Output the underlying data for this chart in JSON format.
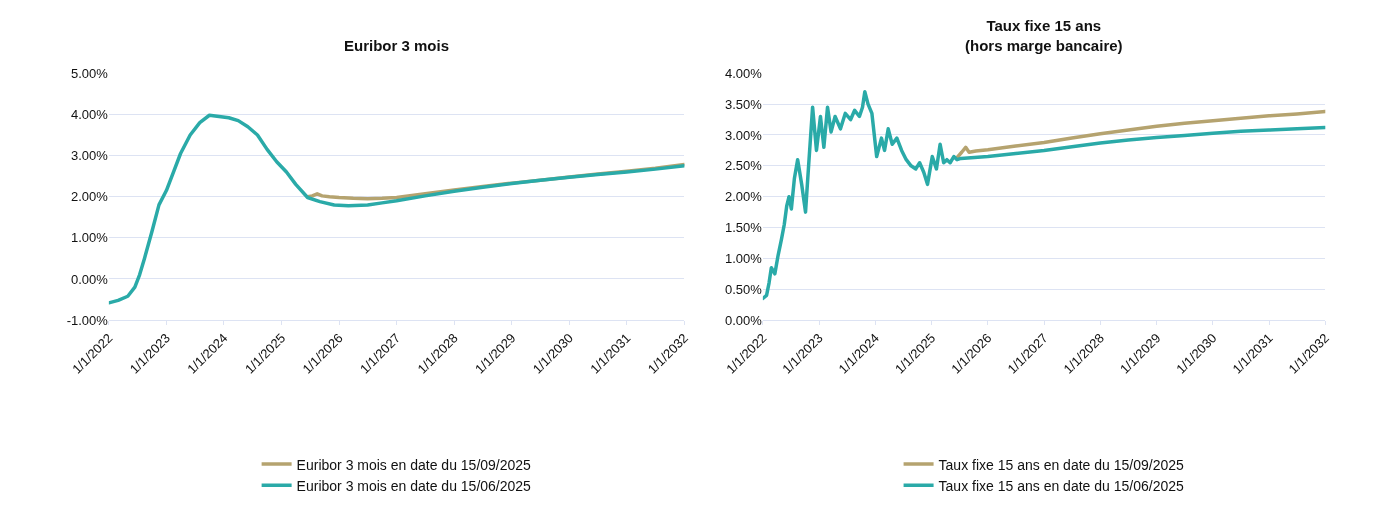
{
  "chart_data": [
    {
      "type": "line",
      "title": "Euribor 3 mois",
      "xlim": [
        "2022-01-01",
        "2032-01-01"
      ],
      "xticks": [
        {
          "value": "2022-01-01",
          "label": "1/1/2022"
        },
        {
          "value": "2023-01-01",
          "label": "1/1/2023"
        },
        {
          "value": "2024-01-01",
          "label": "1/1/2024"
        },
        {
          "value": "2025-01-01",
          "label": "1/1/2025"
        },
        {
          "value": "2026-01-01",
          "label": "1/1/2026"
        },
        {
          "value": "2027-01-01",
          "label": "1/1/2027"
        },
        {
          "value": "2028-01-01",
          "label": "1/1/2028"
        },
        {
          "value": "2029-01-01",
          "label": "1/1/2029"
        },
        {
          "value": "2030-01-01",
          "label": "1/1/2030"
        },
        {
          "value": "2031-01-01",
          "label": "1/1/2031"
        },
        {
          "value": "2032-01-01",
          "label": "1/1/2032"
        }
      ],
      "ylim": [
        -1,
        5
      ],
      "yticks": [
        {
          "value": -1,
          "label": "-1.00%"
        },
        {
          "value": 0,
          "label": "0.00%"
        },
        {
          "value": 1,
          "label": "1.00%"
        },
        {
          "value": 2,
          "label": "2.00%"
        },
        {
          "value": 3,
          "label": "3.00%"
        },
        {
          "value": 4,
          "label": "4.00%"
        },
        {
          "value": 5,
          "label": "5.00%"
        }
      ],
      "grid": "y",
      "legend": "bottom",
      "line_style": "solid",
      "marker": "none",
      "series": [
        {
          "name": "Euribor 3 mois en date du 15/09/2025",
          "color": "#b5a36f",
          "x": [
            "2025-06-15",
            "2025-07-15",
            "2025-08-15",
            "2025-09-15",
            "2025-11-01",
            "2026-01-01",
            "2026-04-01",
            "2026-07-01",
            "2026-10-01",
            "2027-01-01",
            "2027-07-01",
            "2028-01-01",
            "2028-07-01",
            "2029-01-01",
            "2029-07-01",
            "2030-01-01",
            "2030-07-01",
            "2031-01-01",
            "2031-07-01",
            "2032-01-01"
          ],
          "values": [
            2.0,
            2.02,
            2.07,
            2.02,
            2.0,
            1.98,
            1.96,
            1.95,
            1.96,
            1.98,
            2.07,
            2.16,
            2.25,
            2.33,
            2.4,
            2.48,
            2.55,
            2.62,
            2.69,
            2.78
          ]
        },
        {
          "name": "Euribor 3 mois en date du 15/06/2025",
          "color": "#2aaaa8",
          "x": [
            "2022-01-01",
            "2022-03-01",
            "2022-05-01",
            "2022-06-15",
            "2022-07-15",
            "2022-08-15",
            "2022-10-01",
            "2022-11-15",
            "2023-01-01",
            "2023-02-15",
            "2023-04-01",
            "2023-06-01",
            "2023-08-01",
            "2023-10-01",
            "2023-12-01",
            "2024-02-01",
            "2024-04-01",
            "2024-06-01",
            "2024-08-01",
            "2024-10-01",
            "2024-12-01",
            "2025-02-01",
            "2025-04-01",
            "2025-06-15",
            "2025-09-01",
            "2025-12-01",
            "2026-03-01",
            "2026-07-01",
            "2026-10-01",
            "2027-01-01",
            "2027-07-01",
            "2028-01-01",
            "2028-07-01",
            "2029-01-01",
            "2029-07-01",
            "2030-01-01",
            "2030-07-01",
            "2031-01-01",
            "2031-07-01",
            "2032-01-01"
          ],
          "values": [
            -0.58,
            -0.52,
            -0.42,
            -0.2,
            0.1,
            0.5,
            1.15,
            1.8,
            2.15,
            2.6,
            3.05,
            3.5,
            3.8,
            3.98,
            3.95,
            3.92,
            3.85,
            3.7,
            3.5,
            3.15,
            2.85,
            2.6,
            2.3,
            1.98,
            1.88,
            1.8,
            1.78,
            1.8,
            1.85,
            1.9,
            2.02,
            2.13,
            2.23,
            2.32,
            2.4,
            2.47,
            2.54,
            2.6,
            2.67,
            2.75
          ]
        }
      ]
    },
    {
      "type": "line",
      "title": "Taux fixe 15 ans\n(hors marge bancaire)",
      "xlim": [
        "2022-01-01",
        "2032-01-01"
      ],
      "xticks": [
        {
          "value": "2022-01-01",
          "label": "1/1/2022"
        },
        {
          "value": "2023-01-01",
          "label": "1/1/2023"
        },
        {
          "value": "2024-01-01",
          "label": "1/1/2024"
        },
        {
          "value": "2025-01-01",
          "label": "1/1/2025"
        },
        {
          "value": "2026-01-01",
          "label": "1/1/2026"
        },
        {
          "value": "2027-01-01",
          "label": "1/1/2027"
        },
        {
          "value": "2028-01-01",
          "label": "1/1/2028"
        },
        {
          "value": "2029-01-01",
          "label": "1/1/2029"
        },
        {
          "value": "2030-01-01",
          "label": "1/1/2030"
        },
        {
          "value": "2031-01-01",
          "label": "1/1/2031"
        },
        {
          "value": "2032-01-01",
          "label": "1/1/2032"
        }
      ],
      "ylim": [
        0,
        4
      ],
      "yticks": [
        {
          "value": 0,
          "label": "0.00%"
        },
        {
          "value": 0.5,
          "label": "0.50%"
        },
        {
          "value": 1,
          "label": "1.00%"
        },
        {
          "value": 1.5,
          "label": "1.50%"
        },
        {
          "value": 2,
          "label": "2.00%"
        },
        {
          "value": 2.5,
          "label": "2.50%"
        },
        {
          "value": 3,
          "label": "3.00%"
        },
        {
          "value": 3.5,
          "label": "3.50%"
        },
        {
          "value": 4,
          "label": "4.00%"
        }
      ],
      "grid": "y",
      "legend": "bottom",
      "line_style": "solid",
      "marker": "none",
      "series": [
        {
          "name": "Taux fixe 15 ans en date du 15/09/2025",
          "color": "#b5a36f",
          "x": [
            "2025-06-20",
            "2025-07-15",
            "2025-08-10",
            "2025-09-01",
            "2025-10-15",
            "2026-01-01",
            "2026-07-01",
            "2027-01-01",
            "2027-07-01",
            "2028-01-01",
            "2028-07-01",
            "2029-01-01",
            "2029-07-01",
            "2030-01-01",
            "2030-07-01",
            "2031-01-01",
            "2031-07-01",
            "2032-01-01"
          ],
          "values": [
            2.65,
            2.72,
            2.8,
            2.72,
            2.74,
            2.76,
            2.82,
            2.88,
            2.95,
            3.02,
            3.08,
            3.14,
            3.19,
            3.23,
            3.27,
            3.31,
            3.34,
            3.38
          ]
        },
        {
          "name": "Taux fixe 15 ans en date du 15/06/2025",
          "color": "#2aaaa8",
          "x": [
            "2022-01-01",
            "2022-01-25",
            "2022-02-10",
            "2022-02-25",
            "2022-03-20",
            "2022-04-10",
            "2022-05-01",
            "2022-05-20",
            "2022-06-05",
            "2022-06-20",
            "2022-07-05",
            "2022-07-25",
            "2022-08-15",
            "2022-09-10",
            "2022-10-05",
            "2022-10-25",
            "2022-11-20",
            "2022-12-15",
            "2023-01-10",
            "2023-02-01",
            "2023-02-25",
            "2023-03-20",
            "2023-04-15",
            "2023-05-20",
            "2023-06-20",
            "2023-07-25",
            "2023-08-20",
            "2023-09-20",
            "2023-10-10",
            "2023-10-25",
            "2023-11-15",
            "2023-12-10",
            "2024-01-10",
            "2024-02-10",
            "2024-03-01",
            "2024-03-25",
            "2024-04-20",
            "2024-05-20",
            "2024-06-20",
            "2024-07-20",
            "2024-08-20",
            "2024-09-20",
            "2024-10-15",
            "2024-11-10",
            "2024-12-05",
            "2025-01-05",
            "2025-02-01",
            "2025-02-25",
            "2025-03-20",
            "2025-04-10",
            "2025-05-01",
            "2025-05-25",
            "2025-06-15",
            "2025-07-10",
            "2026-01-01",
            "2026-07-01",
            "2027-01-01",
            "2027-07-01",
            "2028-01-01",
            "2028-07-01",
            "2029-01-01",
            "2029-07-01",
            "2030-01-01",
            "2030-07-01",
            "2031-01-01",
            "2031-07-01",
            "2032-01-01"
          ],
          "values": [
            0.35,
            0.4,
            0.6,
            0.85,
            0.75,
            1.05,
            1.3,
            1.55,
            1.85,
            2.0,
            1.8,
            2.3,
            2.6,
            2.2,
            1.75,
            2.5,
            3.45,
            2.75,
            3.3,
            2.8,
            3.45,
            3.05,
            3.3,
            3.1,
            3.35,
            3.25,
            3.4,
            3.3,
            3.45,
            3.7,
            3.5,
            3.35,
            2.65,
            2.95,
            2.75,
            3.1,
            2.85,
            2.95,
            2.75,
            2.6,
            2.5,
            2.45,
            2.55,
            2.4,
            2.2,
            2.65,
            2.45,
            2.85,
            2.55,
            2.6,
            2.55,
            2.65,
            2.6,
            2.62,
            2.65,
            2.7,
            2.75,
            2.81,
            2.87,
            2.92,
            2.96,
            2.99,
            3.03,
            3.06,
            3.08,
            3.1,
            3.12
          ]
        }
      ]
    }
  ]
}
